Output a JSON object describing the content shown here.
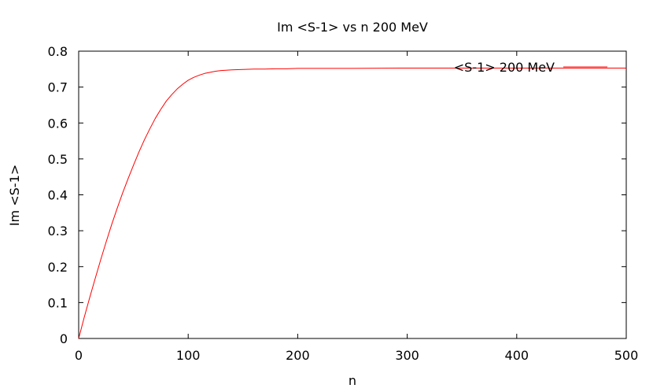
{
  "chart_data": {
    "type": "line",
    "title": "Im <S-1> vs n 200 MeV",
    "xlabel": "n",
    "ylabel": "Im <S-1>",
    "xlim": [
      0,
      500
    ],
    "ylim": [
      0,
      0.8
    ],
    "xticks": [
      0,
      100,
      200,
      300,
      400,
      500
    ],
    "yticks": [
      0,
      0.1,
      0.2,
      0.3,
      0.4,
      0.5,
      0.6,
      0.7,
      0.8
    ],
    "xtick_labels": [
      "0",
      "100",
      "200",
      "300",
      "400",
      "500"
    ],
    "ytick_labels": [
      "0",
      "0.1",
      "0.2",
      "0.3",
      "0.4",
      "0.5",
      "0.6",
      "0.7",
      "0.8"
    ],
    "grid": false,
    "legend_position": "top-right",
    "series": [
      {
        "name": "<S-1> 200 MeV",
        "color": "#ff0000",
        "x": [
          0,
          5,
          10,
          15,
          20,
          25,
          30,
          35,
          40,
          45,
          50,
          55,
          60,
          65,
          70,
          75,
          80,
          85,
          90,
          95,
          100,
          105,
          110,
          115,
          120,
          125,
          130,
          140,
          150,
          160,
          170,
          180,
          190,
          200,
          225,
          250,
          300,
          350,
          400,
          450,
          500
        ],
        "y": [
          0,
          0.058,
          0.113,
          0.166,
          0.218,
          0.268,
          0.316,
          0.361,
          0.404,
          0.444,
          0.482,
          0.519,
          0.553,
          0.584,
          0.613,
          0.638,
          0.661,
          0.679,
          0.695,
          0.708,
          0.719,
          0.727,
          0.733,
          0.738,
          0.741,
          0.744,
          0.746,
          0.748,
          0.749,
          0.75,
          0.75,
          0.751,
          0.751,
          0.752,
          0.752,
          0.752,
          0.753,
          0.753,
          0.753,
          0.753,
          0.753
        ]
      }
    ]
  }
}
